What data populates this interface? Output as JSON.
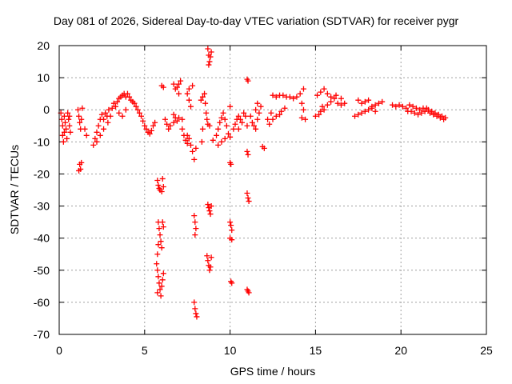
{
  "chart_data": {
    "type": "scatter",
    "title": "Day 081 of 2026, Sidereal Day-to-day VTEC variation (SDTVAR) for receiver pygr",
    "xlabel": "GPS time / hours",
    "ylabel": "SDTVAR / TECUs",
    "xlim": [
      0,
      25
    ],
    "ylim": [
      -70,
      20
    ],
    "xticks": [
      0,
      5,
      10,
      15,
      20,
      25
    ],
    "yticks": [
      20,
      10,
      0,
      -10,
      -20,
      -30,
      -40,
      -50,
      -60,
      -70
    ],
    "grid": true,
    "marker": "+",
    "color": "#ff0000",
    "series": [
      {
        "name": "SDTVAR",
        "points": [
          [
            0.1,
            -1.0
          ],
          [
            0.15,
            -3.0
          ],
          [
            0.2,
            -5.0
          ],
          [
            0.2,
            -8.0
          ],
          [
            0.25,
            -10.0
          ],
          [
            0.3,
            -7.0
          ],
          [
            0.3,
            -2.0
          ],
          [
            0.35,
            -4.0
          ],
          [
            0.4,
            -6.0
          ],
          [
            0.45,
            -9.0
          ],
          [
            0.5,
            -1.0
          ],
          [
            0.55,
            -3.0
          ],
          [
            0.6,
            -5.0
          ],
          [
            0.65,
            -7.0
          ],
          [
            0.6,
            -2.0
          ],
          [
            1.1,
            0.0
          ],
          [
            1.15,
            -2.0
          ],
          [
            1.2,
            -4.0
          ],
          [
            1.25,
            -6.0
          ],
          [
            1.3,
            -3.0
          ],
          [
            1.35,
            0.5
          ],
          [
            1.5,
            -6.0
          ],
          [
            1.6,
            -8.0
          ],
          [
            1.2,
            -17.0
          ],
          [
            1.25,
            -18.5
          ],
          [
            1.3,
            -16.5
          ],
          [
            1.15,
            -19.0
          ],
          [
            2.0,
            -11.0
          ],
          [
            2.1,
            -9.0
          ],
          [
            2.2,
            -7.0
          ],
          [
            2.3,
            -5.0
          ],
          [
            2.4,
            -3.0
          ],
          [
            2.5,
            -1.5
          ],
          [
            2.6,
            -3.0
          ],
          [
            2.7,
            -1.0
          ],
          [
            2.8,
            -2.0
          ],
          [
            2.9,
            0.0
          ],
          [
            3.0,
            -2.0
          ],
          [
            2.2,
            -10.0
          ],
          [
            2.4,
            -8.0
          ],
          [
            2.6,
            -6.0
          ],
          [
            2.85,
            -4.0
          ],
          [
            3.1,
            0.5
          ],
          [
            3.2,
            2.0
          ],
          [
            3.3,
            1.0
          ],
          [
            3.4,
            2.5
          ],
          [
            3.5,
            3.5
          ],
          [
            3.6,
            4.0
          ],
          [
            3.7,
            4.5
          ],
          [
            3.8,
            5.0
          ],
          [
            3.9,
            4.0
          ],
          [
            4.0,
            5.0
          ],
          [
            4.1,
            4.0
          ],
          [
            4.2,
            3.0
          ],
          [
            4.3,
            2.5
          ],
          [
            3.5,
            -1.0
          ],
          [
            3.7,
            -2.0
          ],
          [
            3.9,
            0.0
          ],
          [
            4.4,
            2.0
          ],
          [
            4.5,
            1.0
          ],
          [
            4.6,
            0.0
          ],
          [
            4.7,
            -1.0
          ],
          [
            4.8,
            -2.0
          ],
          [
            4.9,
            -3.5
          ],
          [
            5.0,
            -5.0
          ],
          [
            5.1,
            -6.0
          ],
          [
            5.2,
            -7.0
          ],
          [
            5.3,
            -7.5
          ],
          [
            5.4,
            -6.5
          ],
          [
            5.5,
            -5.0
          ],
          [
            5.6,
            -4.0
          ],
          [
            6.0,
            7.5
          ],
          [
            6.1,
            7.0
          ],
          [
            6.2,
            -3.0
          ],
          [
            6.3,
            -4.5
          ],
          [
            6.4,
            -6.0
          ],
          [
            6.5,
            -5.0
          ],
          [
            6.7,
            -4.0
          ],
          [
            5.75,
            -22.0
          ],
          [
            5.8,
            -23.5
          ],
          [
            5.85,
            -24.5
          ],
          [
            5.9,
            -25.0
          ],
          [
            6.0,
            -25.5
          ],
          [
            6.05,
            -21.5
          ],
          [
            6.1,
            -24.0
          ],
          [
            5.8,
            -35.0
          ],
          [
            5.85,
            -37.0
          ],
          [
            5.9,
            -39.0
          ],
          [
            5.95,
            -41.0
          ],
          [
            6.0,
            -43.0
          ],
          [
            5.75,
            -45.0
          ],
          [
            5.8,
            -42.0
          ],
          [
            6.05,
            -35.0
          ],
          [
            6.1,
            -36.5
          ],
          [
            5.7,
            -48.0
          ],
          [
            5.75,
            -50.0
          ],
          [
            5.8,
            -52.0
          ],
          [
            5.85,
            -54.0
          ],
          [
            5.9,
            -56.0
          ],
          [
            5.95,
            -58.0
          ],
          [
            6.0,
            -55.0
          ],
          [
            6.05,
            -53.0
          ],
          [
            6.1,
            -51.0
          ],
          [
            5.75,
            -57.0
          ],
          [
            6.7,
            -1.5
          ],
          [
            6.8,
            -2.5
          ],
          [
            6.9,
            -3.5
          ],
          [
            7.0,
            -2.5
          ],
          [
            7.2,
            -3.0
          ],
          [
            6.7,
            8.0
          ],
          [
            6.8,
            6.5
          ],
          [
            6.9,
            7.0
          ],
          [
            7.0,
            8.0
          ],
          [
            7.1,
            9.0
          ],
          [
            7.0,
            5.0
          ],
          [
            7.2,
            -6.0
          ],
          [
            7.3,
            -8.0
          ],
          [
            7.4,
            -9.5
          ],
          [
            7.5,
            -10.5
          ],
          [
            7.6,
            -9.0
          ],
          [
            7.7,
            -11.0
          ],
          [
            7.8,
            -13.0
          ],
          [
            7.9,
            -15.5
          ],
          [
            8.0,
            -12.0
          ],
          [
            7.5,
            -8.0
          ],
          [
            7.5,
            5.0
          ],
          [
            7.6,
            3.0
          ],
          [
            7.7,
            1.0
          ],
          [
            7.6,
            6.5
          ],
          [
            7.8,
            7.5
          ],
          [
            7.9,
            -33.0
          ],
          [
            7.95,
            -35.0
          ],
          [
            8.0,
            -37.0
          ],
          [
            7.95,
            -39.0
          ],
          [
            7.95,
            -62.0
          ],
          [
            8.0,
            -63.5
          ],
          [
            8.05,
            -64.5
          ],
          [
            7.9,
            -60.0
          ],
          [
            8.3,
            3.0
          ],
          [
            8.4,
            4.0
          ],
          [
            8.5,
            5.0
          ],
          [
            8.55,
            2.0
          ],
          [
            8.6,
            -1.0
          ],
          [
            8.65,
            -3.0
          ],
          [
            8.7,
            -4.5
          ],
          [
            8.4,
            -6.0
          ],
          [
            8.35,
            -10.0
          ],
          [
            8.8,
            -5.0
          ],
          [
            8.7,
            19.0
          ],
          [
            8.75,
            17.0
          ],
          [
            8.8,
            15.0
          ],
          [
            8.85,
            16.5
          ],
          [
            8.9,
            18.0
          ],
          [
            8.75,
            14.0
          ],
          [
            8.7,
            -29.5
          ],
          [
            8.75,
            -30.5
          ],
          [
            8.8,
            -31.5
          ],
          [
            8.85,
            -32.5
          ],
          [
            8.9,
            -30.0
          ],
          [
            8.65,
            -45.5
          ],
          [
            8.7,
            -47.0
          ],
          [
            8.75,
            -48.5
          ],
          [
            8.8,
            -50.0
          ],
          [
            8.85,
            -49.0
          ],
          [
            8.9,
            -46.0
          ],
          [
            9.0,
            -9.5
          ],
          [
            9.2,
            -8.0
          ],
          [
            9.3,
            -6.0
          ],
          [
            9.4,
            -4.0
          ],
          [
            9.5,
            -2.5
          ],
          [
            9.6,
            -1.0
          ],
          [
            9.7,
            -3.0
          ],
          [
            9.8,
            -5.0
          ],
          [
            9.9,
            -7.5
          ],
          [
            10.0,
            -8.5
          ],
          [
            9.3,
            -11.0
          ],
          [
            9.5,
            -10.0
          ],
          [
            9.7,
            -9.0
          ],
          [
            10.0,
            1.0
          ],
          [
            10.0,
            -16.5
          ],
          [
            10.05,
            -17.0
          ],
          [
            10.0,
            -35.0
          ],
          [
            10.05,
            -36.0
          ],
          [
            10.1,
            -37.5
          ],
          [
            10.0,
            -40.0
          ],
          [
            10.1,
            -40.5
          ],
          [
            10.05,
            -53.5
          ],
          [
            10.1,
            -54.0
          ],
          [
            10.2,
            -6.0
          ],
          [
            10.3,
            -4.5
          ],
          [
            10.4,
            -3.0
          ],
          [
            10.5,
            -2.0
          ],
          [
            10.6,
            -3.0
          ],
          [
            10.7,
            -4.0
          ],
          [
            10.8,
            -1.0
          ],
          [
            10.9,
            -2.0
          ],
          [
            11.0,
            -5.0
          ],
          [
            10.5,
            -6.0
          ],
          [
            11.0,
            9.5
          ],
          [
            11.05,
            9.0
          ],
          [
            11.0,
            -13.0
          ],
          [
            11.05,
            -14.0
          ],
          [
            11.0,
            -26.0
          ],
          [
            11.05,
            -27.5
          ],
          [
            11.1,
            -28.5
          ],
          [
            11.0,
            -56.0
          ],
          [
            11.1,
            -57.0
          ],
          [
            11.05,
            -56.5
          ],
          [
            11.2,
            -2.0
          ],
          [
            11.3,
            -4.0
          ],
          [
            11.4,
            -5.0
          ],
          [
            11.5,
            -6.0
          ],
          [
            11.6,
            -3.0
          ],
          [
            11.7,
            -1.0
          ],
          [
            11.8,
            1.0
          ],
          [
            11.6,
            2.0
          ],
          [
            11.5,
            0.0
          ],
          [
            11.9,
            -11.5
          ],
          [
            12.0,
            -12.0
          ],
          [
            12.2,
            -3.0
          ],
          [
            12.3,
            -4.5
          ],
          [
            12.5,
            -3.0
          ],
          [
            12.7,
            -2.0
          ],
          [
            12.9,
            -1.5
          ],
          [
            13.0,
            -0.5
          ],
          [
            13.2,
            0.5
          ],
          [
            12.4,
            -1.0
          ],
          [
            12.5,
            4.5
          ],
          [
            12.7,
            4.0
          ],
          [
            12.9,
            4.5
          ],
          [
            13.1,
            4.5
          ],
          [
            13.3,
            4.0
          ],
          [
            13.5,
            4.0
          ],
          [
            13.7,
            3.5
          ],
          [
            13.9,
            4.0
          ],
          [
            14.1,
            5.0
          ],
          [
            14.3,
            6.5
          ],
          [
            14.2,
            2.0
          ],
          [
            14.3,
            0.0
          ],
          [
            14.2,
            -2.5
          ],
          [
            14.4,
            -3.0
          ],
          [
            15.0,
            -2.0
          ],
          [
            15.2,
            -1.5
          ],
          [
            15.3,
            -0.5
          ],
          [
            15.4,
            1.0
          ],
          [
            15.5,
            0.0
          ],
          [
            15.7,
            1.5
          ],
          [
            15.9,
            2.5
          ],
          [
            16.1,
            3.5
          ],
          [
            16.3,
            2.0
          ],
          [
            16.5,
            1.5
          ],
          [
            16.7,
            2.0
          ],
          [
            15.1,
            4.5
          ],
          [
            15.3,
            5.5
          ],
          [
            15.5,
            6.5
          ],
          [
            15.7,
            5.0
          ],
          [
            15.9,
            4.0
          ],
          [
            16.2,
            4.5
          ],
          [
            16.5,
            3.5
          ],
          [
            17.3,
            -2.0
          ],
          [
            17.5,
            -1.5
          ],
          [
            17.7,
            -1.0
          ],
          [
            17.9,
            -0.5
          ],
          [
            18.1,
            0.0
          ],
          [
            18.3,
            1.0
          ],
          [
            18.5,
            1.5
          ],
          [
            18.7,
            2.0
          ],
          [
            18.9,
            2.5
          ],
          [
            17.5,
            3.0
          ],
          [
            17.7,
            2.0
          ],
          [
            17.9,
            2.5
          ],
          [
            18.1,
            3.0
          ],
          [
            18.3,
            0.5
          ],
          [
            18.5,
            -0.5
          ],
          [
            19.5,
            1.5
          ],
          [
            19.7,
            1.0
          ],
          [
            19.9,
            1.5
          ],
          [
            20.1,
            1.0
          ],
          [
            20.3,
            0.5
          ],
          [
            20.4,
            -0.5
          ],
          [
            20.6,
            -0.5
          ],
          [
            20.8,
            -1.0
          ],
          [
            21.0,
            -1.5
          ],
          [
            21.2,
            -1.0
          ],
          [
            21.4,
            -0.5
          ],
          [
            21.6,
            0.0
          ],
          [
            21.8,
            -0.5
          ],
          [
            22.0,
            -1.0
          ],
          [
            22.2,
            -1.5
          ],
          [
            22.4,
            -2.0
          ],
          [
            22.6,
            -2.5
          ],
          [
            20.5,
            1.5
          ],
          [
            20.7,
            1.0
          ],
          [
            20.9,
            0.5
          ],
          [
            21.1,
            0.0
          ],
          [
            21.3,
            0.5
          ],
          [
            21.5,
            0.5
          ],
          [
            21.7,
            -1.0
          ],
          [
            21.9,
            -1.5
          ],
          [
            22.1,
            -2.0
          ],
          [
            22.3,
            -2.5
          ],
          [
            22.5,
            -3.0
          ]
        ]
      }
    ]
  }
}
